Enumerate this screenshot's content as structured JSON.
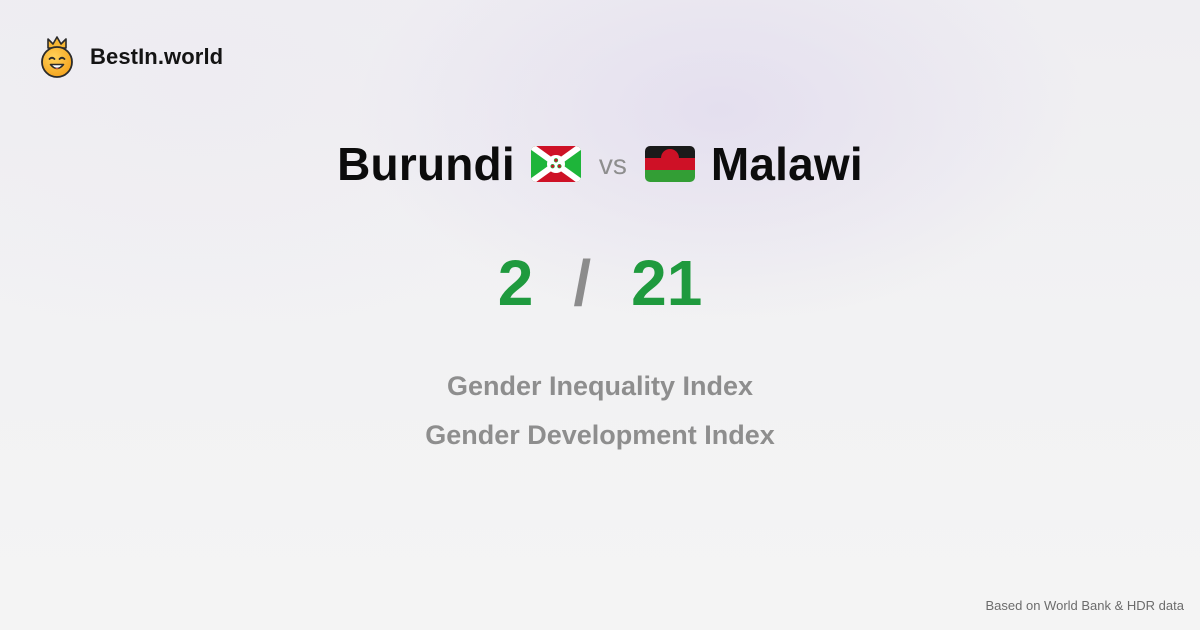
{
  "brand": {
    "name": "BestIn.world",
    "logo_icon": "crowned-smiley-icon"
  },
  "comparison": {
    "left_country": "Burundi",
    "left_flag_icon": "burundi-flag-icon",
    "vs_label": "vs",
    "right_country": "Malawi",
    "right_flag_icon": "malawi-flag-icon"
  },
  "scores": {
    "left": "2",
    "separator": "/",
    "right": "21",
    "color": "#1f9a3e"
  },
  "metrics": [
    "Gender Inequality Index",
    "Gender Development Index"
  ],
  "footer": {
    "source": "Based on World Bank & HDR data"
  }
}
